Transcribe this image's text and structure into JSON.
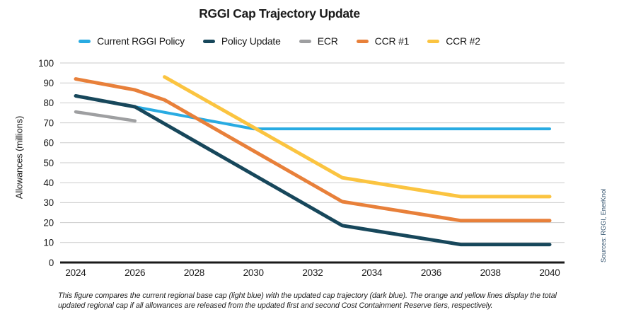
{
  "title": "RGGI Cap Trajectory Update",
  "y_axis_label": "Allowances (millions)",
  "source_note": "Sources: RGGI, EnerKnol",
  "footnote": "This figure compares the current regional base cap (light blue) with the updated cap trajectory (dark blue). The orange and yellow lines display the total updated regional cap if all allowances are released from the updated first and second Cost Containment Reserve tiers, respectively.",
  "colors": {
    "current_policy": "#29ABE2",
    "policy_update": "#17475B",
    "ecr": "#9E9FA1",
    "ccr1": "#E8803A",
    "ccr2": "#FBC440",
    "grid": "#CBCBCB",
    "axis": "#1A1A1A",
    "tick_text": "#1A1A1A",
    "source_text": "#33536E"
  },
  "chart_data": {
    "type": "line",
    "title": "RGGI Cap Trajectory Update",
    "xlabel": "",
    "ylabel": "Allowances (millions)",
    "xlim": [
      2024,
      2040
    ],
    "ylim": [
      0,
      100
    ],
    "x_ticks": [
      2024,
      2026,
      2028,
      2030,
      2032,
      2034,
      2036,
      2038,
      2040
    ],
    "y_ticks": [
      0,
      10,
      20,
      30,
      40,
      50,
      60,
      70,
      80,
      90,
      100
    ],
    "grid": "horizontal",
    "legend_position": "top",
    "series": [
      {
        "name": "Current RGGI Policy",
        "color": "#29ABE2",
        "points": [
          [
            2026,
            78
          ],
          [
            2030,
            67
          ],
          [
            2040,
            67
          ]
        ]
      },
      {
        "name": "Policy Update",
        "color": "#17475B",
        "points": [
          [
            2024,
            83.5
          ],
          [
            2026,
            78
          ],
          [
            2033,
            18.5
          ],
          [
            2037,
            9
          ],
          [
            2040,
            9
          ]
        ]
      },
      {
        "name": "ECR",
        "color": "#9E9FA1",
        "points": [
          [
            2024,
            75.5
          ],
          [
            2026,
            71
          ]
        ]
      },
      {
        "name": "CCR #1",
        "color": "#E8803A",
        "points": [
          [
            2024,
            92
          ],
          [
            2026,
            86.5
          ],
          [
            2027,
            81.5
          ],
          [
            2033,
            30.5
          ],
          [
            2037,
            21
          ],
          [
            2040,
            21
          ]
        ]
      },
      {
        "name": "CCR #2",
        "color": "#FBC440",
        "points": [
          [
            2027,
            93
          ],
          [
            2033,
            42.5
          ],
          [
            2037,
            33
          ],
          [
            2040,
            33
          ]
        ]
      }
    ]
  }
}
